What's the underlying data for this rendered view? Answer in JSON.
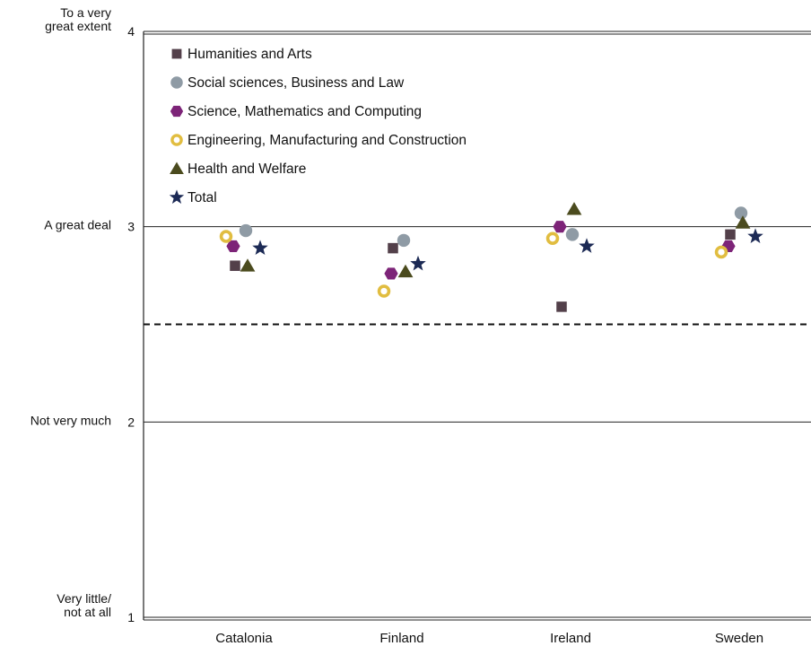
{
  "chart_data": {
    "type": "scatter",
    "title": "",
    "xlabel": "",
    "ylabel": "",
    "categories": [
      "Catalonia",
      "Finland",
      "Ireland",
      "Sweden"
    ],
    "ylim": [
      1,
      4
    ],
    "yticks": [
      1,
      2,
      3,
      4
    ],
    "ytick_descriptions": [
      {
        "value": 4,
        "lines": [
          "To a very",
          "great extent"
        ]
      },
      {
        "value": 3,
        "lines": [
          "A great deal"
        ]
      },
      {
        "value": 2,
        "lines": [
          "Not very much"
        ]
      },
      {
        "value": 1,
        "lines": [
          "Very little/",
          "not at all"
        ]
      }
    ],
    "reference_line": {
      "value": 2.5,
      "style": "dashed"
    },
    "grid": true,
    "legend_position": "top-left",
    "series": [
      {
        "name": "Humanities and Arts",
        "marker": "square",
        "color": "#53404a",
        "values": [
          2.8,
          2.89,
          2.59,
          2.96
        ]
      },
      {
        "name": "Social sciences, Business and Law",
        "marker": "circle",
        "color": "#8f9ba5",
        "values": [
          2.98,
          2.93,
          2.96,
          3.07
        ]
      },
      {
        "name": "Science, Mathematics and Computing",
        "marker": "hexagon",
        "color": "#7d2478",
        "values": [
          2.9,
          2.76,
          3.0,
          2.9
        ]
      },
      {
        "name": "Engineering, Manufacturing and Construction",
        "marker": "ring",
        "color": "#e1bd40",
        "values": [
          2.95,
          2.67,
          2.94,
          2.87
        ]
      },
      {
        "name": "Health and Welfare",
        "marker": "triangle",
        "color": "#4b4b1e",
        "values": [
          2.8,
          2.77,
          3.09,
          3.02
        ]
      },
      {
        "name": "Total",
        "marker": "star",
        "color": "#1c2a55",
        "values": [
          2.89,
          2.81,
          2.9,
          2.95
        ]
      }
    ]
  }
}
